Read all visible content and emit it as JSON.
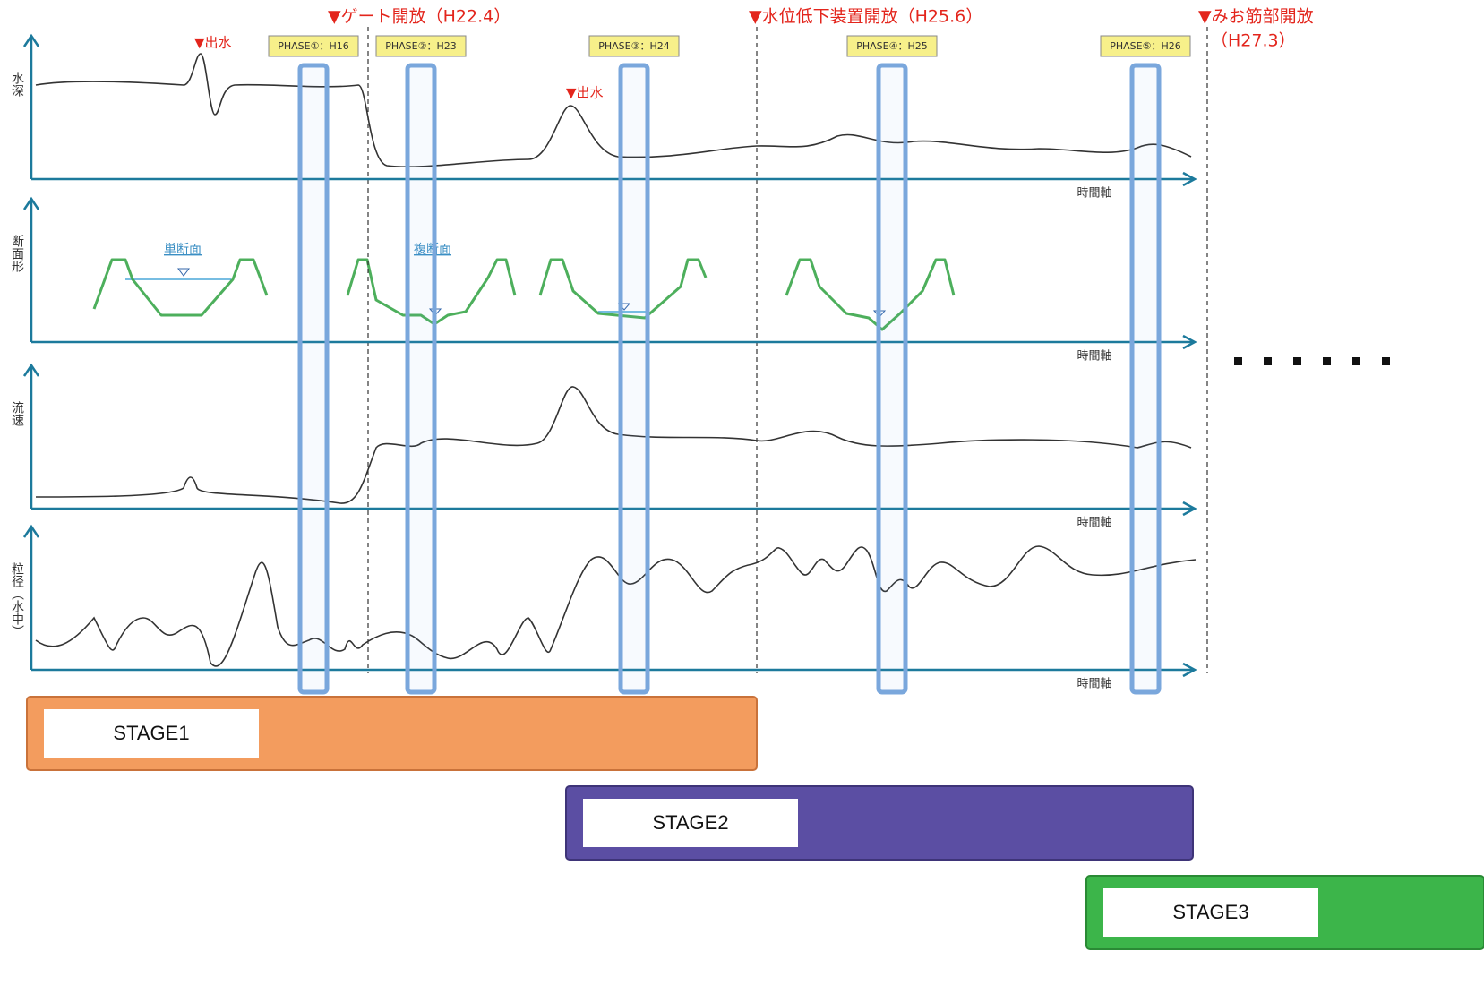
{
  "events": [
    {
      "text": "▼ゲート開放（H22.4）"
    },
    {
      "text": "▼水位低下装置開放（H25.6）"
    },
    {
      "text": "▼みお筋部開放",
      "sub": "（H27.3）"
    }
  ],
  "floods": [
    "▼出水",
    "▼出水"
  ],
  "phases": [
    "PHASE①：H16",
    "PHASE②：H23",
    "PHASE③：H24",
    "PHASE④：H25",
    "PHASE⑤：H26"
  ],
  "panels": [
    {
      "label": "水深",
      "axis": "時間軸"
    },
    {
      "label": "断面形",
      "axis": "時間軸"
    },
    {
      "label": "流速",
      "axis": "時間軸"
    },
    {
      "label": "粒径（水中）",
      "axis": "時間軸"
    }
  ],
  "sections": [
    "単断面",
    "複断面"
  ],
  "stages": [
    "STAGE1",
    "STAGE2",
    "STAGE3"
  ]
}
